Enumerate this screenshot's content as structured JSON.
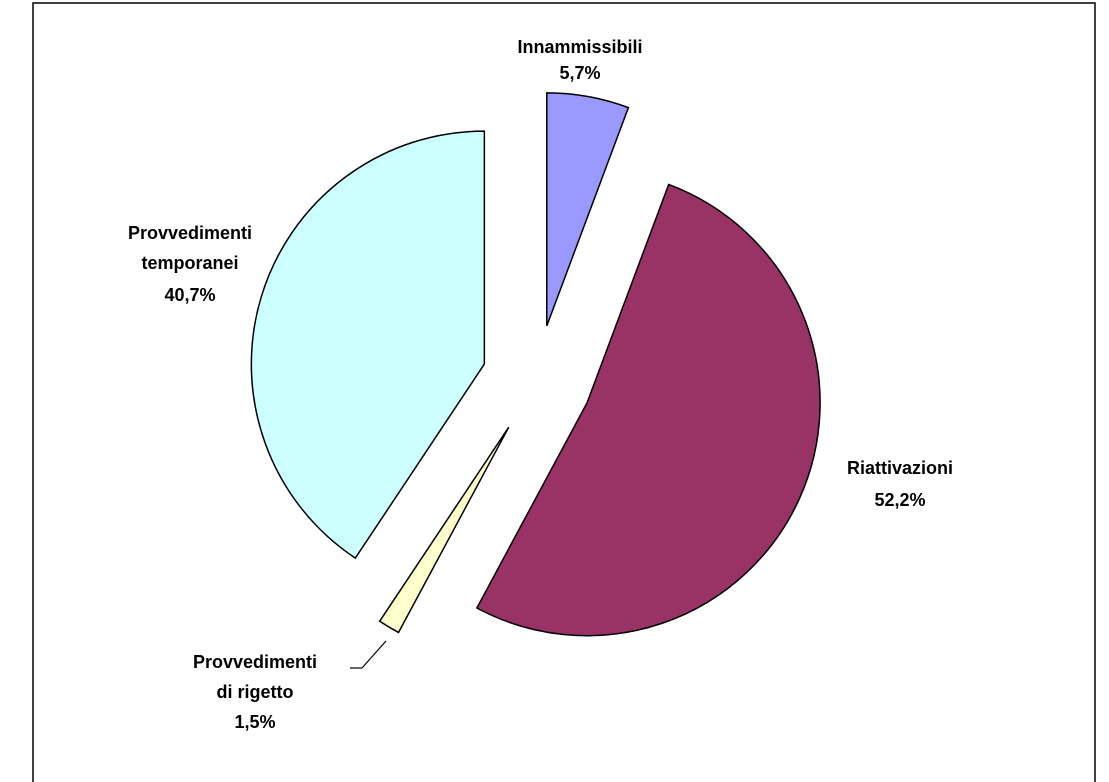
{
  "chart_data": {
    "type": "pie",
    "categories": [
      "Innammissibili",
      "Riattivazioni",
      "Provvedimenti di rigetto",
      "Provvedimenti temporanei"
    ],
    "values": [
      5.7,
      52.2,
      1.5,
      40.7
    ],
    "value_labels": [
      "5,7%",
      "52,2%",
      "1,5%",
      "40,7%"
    ],
    "colors": [
      "#9999ff",
      "#993366",
      "#ffffcc",
      "#ccffff"
    ]
  }
}
